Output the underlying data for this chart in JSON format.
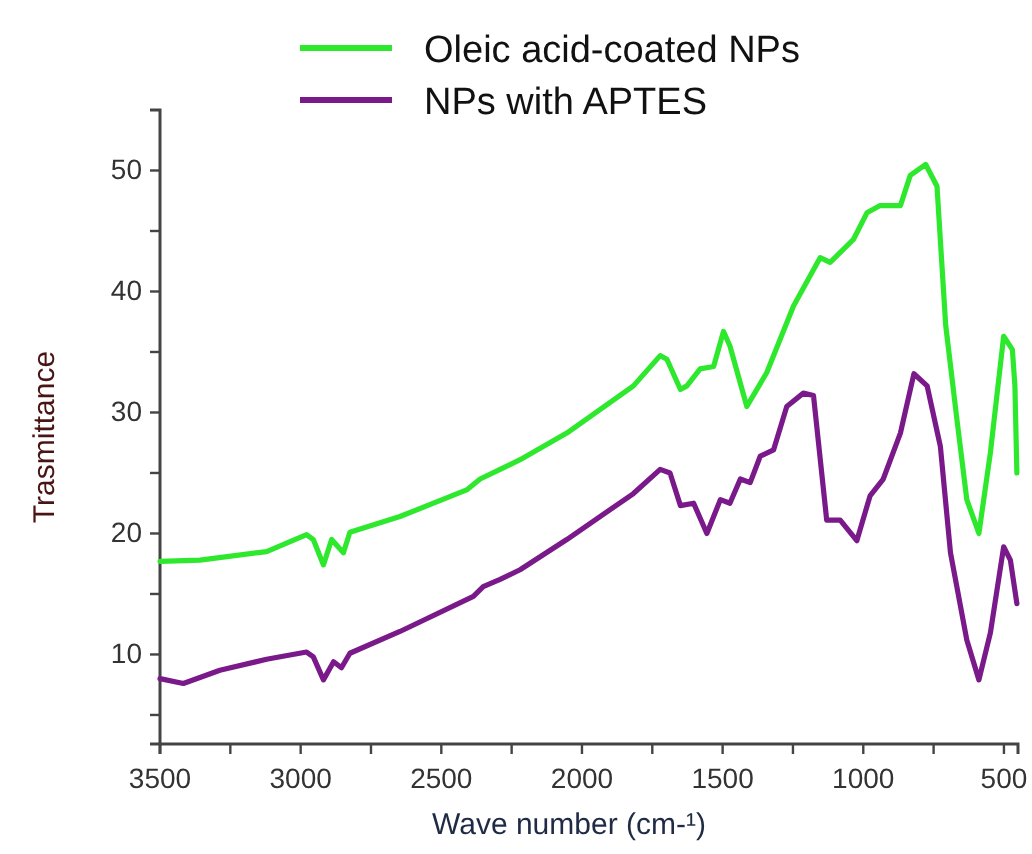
{
  "chart_data": {
    "type": "line",
    "xlabel": "Wave number (cm-¹)",
    "ylabel": "Trasmittance",
    "xlim": [
      3500,
      450
    ],
    "xticks": [
      3500,
      {
        "value": 3250,
        "label": null
      },
      3000,
      {
        "value": 2750,
        "label": null
      },
      2500,
      {
        "value": 2250,
        "label": null
      },
      2000,
      {
        "value": 1750,
        "label": null
      },
      1500,
      {
        "value": 1250,
        "label": null
      },
      1000,
      {
        "value": 750,
        "label": null
      },
      500
    ],
    "ylim": [
      2.6,
      55
    ],
    "yticks": [
      {
        "value": 5,
        "label": null
      },
      10,
      {
        "value": 15,
        "label": null
      },
      20,
      {
        "value": 25,
        "label": null
      },
      30,
      {
        "value": 35,
        "label": null
      },
      40,
      {
        "value": 45,
        "label": null
      },
      50
    ],
    "grid": false,
    "legend": "top",
    "marker": "none",
    "line_style": "solid",
    "series": [
      {
        "name": "Oleic acid-coated NPs",
        "color": "#2ee82e",
        "x": [
          3500,
          3358,
          3121,
          2979,
          2955,
          2919,
          2890,
          2848,
          2825,
          2647,
          2410,
          2362,
          2291,
          2220,
          2054,
          1817,
          1722,
          1698,
          1650,
          1627,
          1580,
          1532,
          1497,
          1474,
          1414,
          1343,
          1248,
          1153,
          1118,
          1035,
          987,
          940,
          868,
          833,
          778,
          738,
          707,
          667,
          632,
          589,
          548,
          501,
          470,
          461,
          454
        ],
        "values": [
          17.7,
          17.8,
          18.5,
          19.9,
          19.5,
          17.4,
          19.5,
          18.4,
          20.1,
          21.4,
          23.6,
          24.5,
          25.3,
          26.1,
          28.3,
          32.2,
          34.7,
          34.4,
          31.9,
          32.2,
          33.6,
          33.8,
          36.7,
          35.5,
          30.5,
          33.3,
          38.8,
          42.8,
          42.4,
          44.3,
          46.5,
          47.1,
          47.1,
          49.6,
          50.5,
          48.7,
          37.2,
          29.4,
          22.8,
          20.0,
          26.7,
          36.3,
          35.2,
          32.2,
          25.0
        ]
      },
      {
        "name": "NPs with APTES",
        "color": "#7a1a8a",
        "x": [
          3500,
          3417,
          3287,
          3121,
          2979,
          2955,
          2919,
          2883,
          2855,
          2825,
          2647,
          2386,
          2351,
          2291,
          2220,
          2054,
          1817,
          1722,
          1687,
          1650,
          1603,
          1556,
          1508,
          1474,
          1437,
          1402,
          1366,
          1319,
          1272,
          1213,
          1177,
          1130,
          1082,
          1023,
          976,
          929,
          868,
          820,
          773,
          726,
          690,
          632,
          589,
          548,
          501,
          477,
          454
        ],
        "values": [
          8.0,
          7.6,
          8.7,
          9.6,
          10.2,
          9.8,
          7.9,
          9.4,
          8.9,
          10.1,
          11.9,
          14.8,
          15.6,
          16.2,
          17.0,
          19.5,
          23.3,
          25.3,
          25.0,
          22.3,
          22.5,
          20.0,
          22.8,
          22.5,
          24.5,
          24.2,
          26.4,
          26.9,
          30.5,
          31.6,
          31.4,
          21.1,
          21.1,
          19.4,
          23.1,
          24.5,
          28.3,
          33.2,
          32.2,
          27.2,
          18.4,
          11.2,
          7.9,
          11.8,
          18.9,
          17.8,
          14.2
        ]
      }
    ]
  }
}
